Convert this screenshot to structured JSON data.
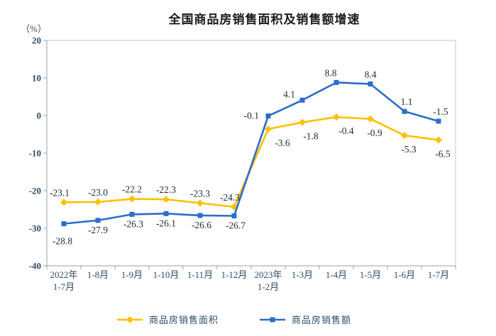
{
  "chart_data": {
    "type": "line",
    "title": "全国商品房销售面积及销售额增速",
    "unit_label": "（%）",
    "categories": [
      "2022年\n1-7月",
      "1-8月",
      "1-9月",
      "1-10月",
      "1-11月",
      "1-12月",
      "2023年\n1-2月",
      "1-3月",
      "1-4月",
      "1-5月",
      "1-6月",
      "1-7月"
    ],
    "ylim": [
      -40,
      20
    ],
    "yticks": [
      20,
      10,
      0,
      -10,
      -20,
      -30,
      -40
    ],
    "grid": false,
    "legend_position": "bottom",
    "series": [
      {
        "name": "商品房销售面积",
        "color": "#FFC000",
        "marker": "diamond",
        "values": [
          -23.1,
          -23.0,
          -22.2,
          -22.3,
          -23.3,
          -24.3,
          -3.6,
          -1.8,
          -0.4,
          -0.9,
          -5.3,
          -6.5
        ],
        "labels": [
          "-23.1",
          "-23.0",
          "-22.2",
          "-22.3",
          "-23.3",
          "-24.3",
          "-3.6",
          "-1.8",
          "-0.4",
          "-0.9",
          "-5.3",
          "-6.5"
        ],
        "label_pos": [
          "above",
          "above",
          "above",
          "above",
          "above",
          "above",
          "below",
          "below",
          "below",
          "below",
          "below",
          "below"
        ],
        "label_dx": [
          -6,
          0,
          0,
          0,
          0,
          -6,
          20,
          12,
          14,
          6,
          6,
          6
        ]
      },
      {
        "name": "商品房销售额",
        "color": "#2D6CC8",
        "marker": "square",
        "values": [
          -28.8,
          -27.9,
          -26.3,
          -26.1,
          -26.6,
          -26.7,
          -0.1,
          4.1,
          8.8,
          8.4,
          1.1,
          -1.5
        ],
        "labels": [
          "-28.8",
          "-27.9",
          "-26.3",
          "-26.1",
          "-26.6",
          "-26.7",
          "-0.1",
          "4.1",
          "8.8",
          "8.4",
          "1.1",
          "-1.5"
        ],
        "label_pos": [
          "below-far",
          "below-near",
          "below-near",
          "below-near",
          "below-near",
          "below-near",
          "left",
          "above-left",
          "above",
          "above",
          "above",
          "above"
        ],
        "label_dx": [
          -2,
          0,
          2,
          0,
          2,
          2,
          0,
          0,
          -8,
          0,
          3,
          3
        ]
      }
    ],
    "colors": {
      "axis_text": "#2e4d66",
      "data_label_text": "#1f2a33",
      "title_text": "#1a1a1a",
      "frame": "#c9c9c9",
      "axis_line": "#9aa0a6"
    }
  }
}
